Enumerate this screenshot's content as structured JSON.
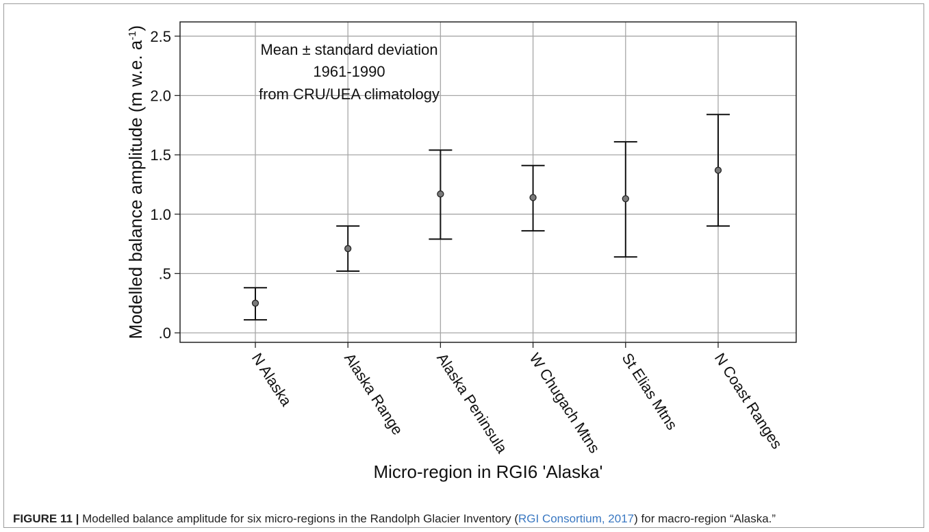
{
  "chart_data": {
    "type": "errorbar",
    "categories": [
      "N Alaska",
      "Alaska Range",
      "Alaska Peninsula",
      "W Chugach Mtns",
      "St Elias Mtns",
      "N Coast Ranges"
    ],
    "series": [
      {
        "mean": [
          0.25,
          0.71,
          1.17,
          1.14,
          1.13,
          1.37
        ],
        "lower": [
          0.11,
          0.52,
          0.79,
          0.86,
          0.64,
          0.9
        ],
        "upper": [
          0.38,
          0.9,
          1.54,
          1.41,
          1.61,
          1.84
        ]
      }
    ],
    "ylabel": "Modelled balance amplitude (m w.e. a",
    "ylabel_sup": "-1",
    "ylabel_close": ")",
    "xlabel": "Micro-region in RGI6 'Alaska'",
    "ylim": [
      -0.08,
      2.62
    ],
    "yticks": [
      0.0,
      0.5,
      1.0,
      1.5,
      2.0,
      2.5
    ],
    "ytick_labels": [
      ".0",
      ".5",
      "1.0",
      "1.5",
      "2.0",
      "2.5"
    ],
    "grid": true,
    "annotation": [
      "Mean ± standard deviation",
      "1961-1990",
      "from CRU/UEA climatology"
    ]
  },
  "caption": {
    "figure_number": "FIGURE 11 |",
    "text_before": " Modelled balance amplitude for six micro-regions in the Randolph Glacier Inventory (",
    "ref": "RGI Consortium, 2017",
    "text_after": ") for macro-region “Alaska.”"
  }
}
